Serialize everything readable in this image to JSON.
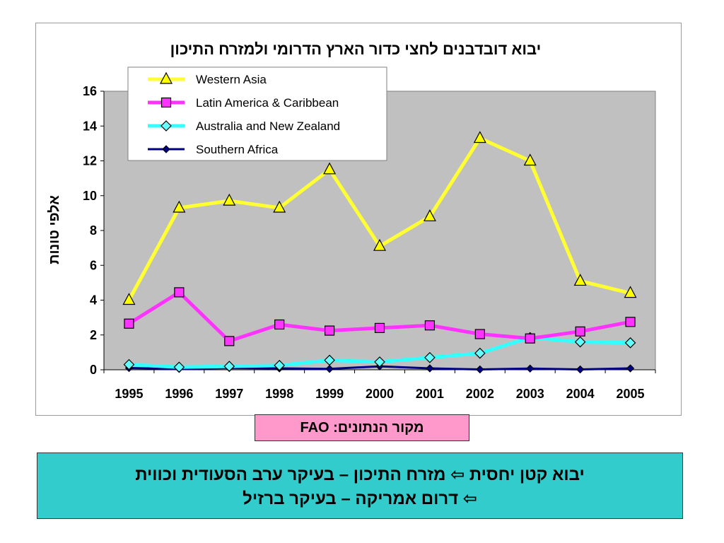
{
  "chart_data": {
    "type": "line",
    "title": "יבוא דובדבנים לחצי כדור הארץ הדרומי ולמזרח התיכון",
    "xlabel": "",
    "ylabel": "אלפי טונות",
    "x": [
      "1995",
      "1996",
      "1997",
      "1998",
      "1999",
      "2000",
      "2001",
      "2002",
      "2003",
      "2004",
      "2005"
    ],
    "ylim": [
      0,
      16
    ],
    "yticks": [
      "0",
      "2",
      "4",
      "6",
      "8",
      "10",
      "12",
      "14",
      "16"
    ],
    "grid": false,
    "legend_position": "top-center",
    "plot_background": "#c0c0c0",
    "series": [
      {
        "name": "Western Asia",
        "color": "#ffff33",
        "marker": "triangle",
        "marker_fill": "#ffff00",
        "values": [
          4.0,
          9.3,
          9.7,
          9.3,
          11.5,
          7.1,
          8.8,
          13.3,
          12.0,
          5.1,
          4.4
        ]
      },
      {
        "name": "Latin America & Caribbean",
        "color": "#ff33ff",
        "marker": "square",
        "marker_fill": "#ff33ff",
        "values": [
          2.65,
          4.45,
          1.65,
          2.6,
          2.25,
          2.4,
          2.55,
          2.05,
          1.8,
          2.2,
          2.75
        ]
      },
      {
        "name": "Australia and New Zealand",
        "color": "#33ffff",
        "marker": "diamond",
        "marker_fill": "#66ffff",
        "values": [
          0.3,
          0.15,
          0.2,
          0.25,
          0.55,
          0.45,
          0.7,
          0.95,
          1.85,
          1.6,
          1.55
        ]
      },
      {
        "name": "Southern Africa",
        "color": "#000080",
        "marker": "diamond",
        "marker_fill": "#000080",
        "values": [
          0.1,
          0.05,
          0.1,
          0.08,
          0.05,
          0.2,
          0.08,
          0.02,
          0.07,
          0.02,
          0.08
        ]
      }
    ]
  },
  "source_label": "מקור הנתונים: FAO",
  "summary": {
    "line1_text": "יבוא קטן יחסית ⇦ מזרח התיכון – בעיקר ערב הסעודית וכווית",
    "line2_text": "⇦ דרום אמריקה – בעיקר ברזיל"
  }
}
